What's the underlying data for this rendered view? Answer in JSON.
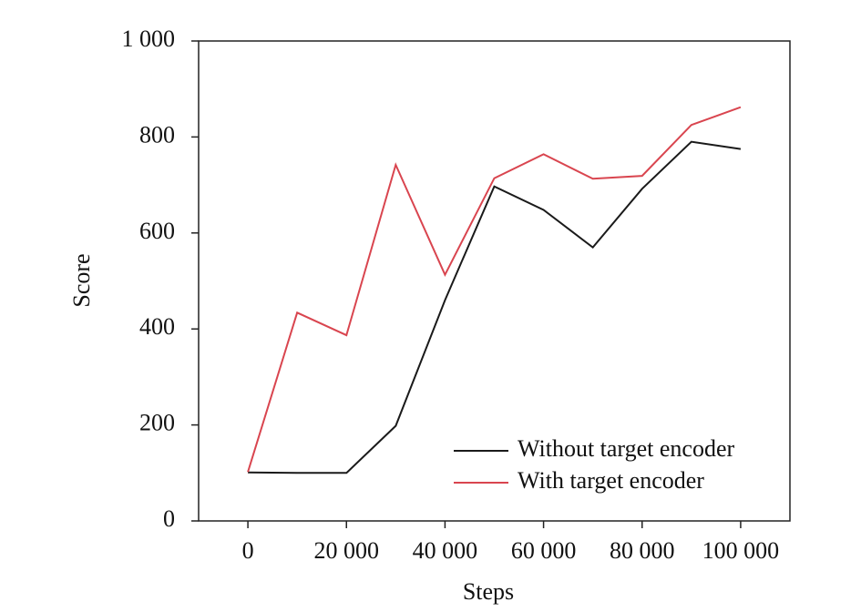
{
  "chart_data": {
    "type": "line",
    "x_label": "Steps",
    "y_label": "Score",
    "x": [
      0,
      10000,
      20000,
      30000,
      40000,
      50000,
      60000,
      70000,
      80000,
      90000,
      100000
    ],
    "series": [
      {
        "name": "Without target encoder",
        "color": "#1a1a1a",
        "values": [
          101,
          100,
          100,
          198,
          460,
          697,
          648,
          570,
          692,
          790,
          775
        ]
      },
      {
        "name": "With target encoder",
        "color": "#d9454f",
        "values": [
          102,
          434,
          387,
          742,
          513,
          714,
          764,
          713,
          719,
          825,
          862
        ]
      }
    ],
    "xlim": [
      -10000,
      110000
    ],
    "xticks": [
      0,
      {
        "value": 20000,
        "label": "20 000"
      },
      {
        "value": 40000,
        "label": "40 000"
      },
      {
        "value": 60000,
        "label": "60 000"
      },
      {
        "value": 80000,
        "label": "80 000"
      },
      {
        "value": 100000,
        "label": "100 000"
      }
    ],
    "ylim": [
      0,
      1000
    ],
    "yticks": [
      0,
      200,
      400,
      600,
      800,
      {
        "value": 1000,
        "label": "1 000"
      }
    ],
    "legend": "lower right",
    "grid": false
  }
}
